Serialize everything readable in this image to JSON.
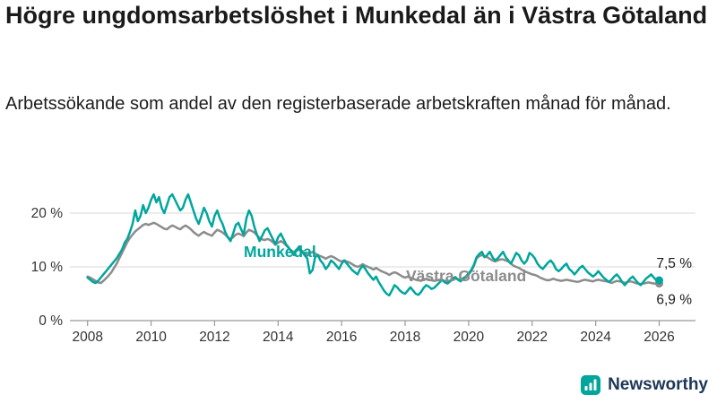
{
  "header": {
    "title": "Högre ungdomsarbetslöshet i Munkedal än i Västra Götaland",
    "subtitle": "Arbetssökande som andel av den registerbaserade arbetskraften månad för månad."
  },
  "footer": {
    "brand": "Newsworthy"
  },
  "colors": {
    "munkedal": "#00A69C",
    "vastra_gotaland": "#8C8C8C",
    "grid": "#D9D9D9",
    "axis": "#999999",
    "axis_text": "#333333",
    "value_text": "#1A1A1A",
    "brand_text": "#1D3756",
    "logo_bg": "#00A69C"
  },
  "chart_data": {
    "type": "line",
    "title": "Högre ungdomsarbetslöshet i Munkedal än i Västra Götaland",
    "xlabel": "",
    "ylabel": "",
    "grid": "horizontal",
    "legend_position": "inline",
    "x_start_year": 2008,
    "x_interval_months": 1,
    "xlim": [
      2007.5,
      2027.2
    ],
    "ylim": [
      0,
      25
    ],
    "x_ticks": [
      2008,
      2010,
      2012,
      2014,
      2016,
      2018,
      2020,
      2022,
      2024,
      2026
    ],
    "y_ticks": [
      {
        "value": 0,
        "label": "0 %"
      },
      {
        "value": 10,
        "label": "10 %"
      },
      {
        "value": 20,
        "label": "20 %"
      }
    ],
    "series": [
      {
        "name": "Munkedal",
        "color": "#00A69C",
        "end_label": "7,5 %",
        "values": [
          8.0,
          7.6,
          7.2,
          7.0,
          7.4,
          8.0,
          8.6,
          9.2,
          9.8,
          10.4,
          11.0,
          11.6,
          12.4,
          13.2,
          14.5,
          15.2,
          16.5,
          18.0,
          20.5,
          18.5,
          19.5,
          21.5,
          20.0,
          21.0,
          22.5,
          23.5,
          22.0,
          23.0,
          21.0,
          20.0,
          21.5,
          23.0,
          23.5,
          22.5,
          21.5,
          20.5,
          21.0,
          22.5,
          23.5,
          22.0,
          20.5,
          19.0,
          18.0,
          19.5,
          21.0,
          20.0,
          18.5,
          17.5,
          19.5,
          20.5,
          19.0,
          18.0,
          16.5,
          15.5,
          14.8,
          16.2,
          17.8,
          18.2,
          17.0,
          16.0,
          19.0,
          20.5,
          19.5,
          17.5,
          16.0,
          14.8,
          15.8,
          16.8,
          17.2,
          16.2,
          15.2,
          14.2,
          15.5,
          16.2,
          15.2,
          14.2,
          13.6,
          12.8,
          12.2,
          13.2,
          13.8,
          12.8,
          12.2,
          11.6,
          8.8,
          9.4,
          11.8,
          12.2,
          11.2,
          10.6,
          9.6,
          10.2,
          11.2,
          10.8,
          10.2,
          9.6,
          10.6,
          11.2,
          10.6,
          10.0,
          9.4,
          9.0,
          8.6,
          9.6,
          10.2,
          9.6,
          8.8,
          8.2,
          7.6,
          8.2,
          7.2,
          6.4,
          5.6,
          5.0,
          4.7,
          5.6,
          6.6,
          6.2,
          5.6,
          5.2,
          5.0,
          5.6,
          6.2,
          5.6,
          5.0,
          4.8,
          5.3,
          6.1,
          6.6,
          6.3,
          5.9,
          6.1,
          6.6,
          7.1,
          7.6,
          7.1,
          6.9,
          7.3,
          7.9,
          8.1,
          7.6,
          7.3,
          7.9,
          8.2,
          8.8,
          9.4,
          10.4,
          11.8,
          12.4,
          12.8,
          11.8,
          12.2,
          12.8,
          11.8,
          11.2,
          11.6,
          12.2,
          12.8,
          11.8,
          11.2,
          10.6,
          11.6,
          12.6,
          12.2,
          11.2,
          10.6,
          11.2,
          12.6,
          12.2,
          11.6,
          10.6,
          10.0,
          9.6,
          10.2,
          10.8,
          11.2,
          10.6,
          9.6,
          9.2,
          9.6,
          10.2,
          10.6,
          9.6,
          9.2,
          8.6,
          9.2,
          9.8,
          10.2,
          9.6,
          9.0,
          8.6,
          8.2,
          8.6,
          9.2,
          8.6,
          8.0,
          7.6,
          7.2,
          7.6,
          8.2,
          8.6,
          8.0,
          7.2,
          6.6,
          7.2,
          7.8,
          8.2,
          7.6,
          7.0,
          6.6,
          7.2,
          7.8,
          8.2,
          8.6,
          8.0,
          7.5,
          7.5
        ]
      },
      {
        "name": "Västra Götaland",
        "color": "#8C8C8C",
        "end_label": "6,9 %",
        "values": [
          8.2,
          8.0,
          7.7,
          7.4,
          7.1,
          7.0,
          7.4,
          7.9,
          8.4,
          9.0,
          9.8,
          10.6,
          11.6,
          12.6,
          13.6,
          14.6,
          15.4,
          16.0,
          16.6,
          17.0,
          17.4,
          17.8,
          18.0,
          17.8,
          18.0,
          18.2,
          18.0,
          17.7,
          17.4,
          17.1,
          17.0,
          17.4,
          17.7,
          17.5,
          17.2,
          17.0,
          17.4,
          17.7,
          17.4,
          17.0,
          16.5,
          16.1,
          15.8,
          16.2,
          16.5,
          16.2,
          16.0,
          15.8,
          16.4,
          16.9,
          16.7,
          16.4,
          16.0,
          15.5,
          15.2,
          15.5,
          16.0,
          16.2,
          16.0,
          15.7,
          16.4,
          16.9,
          16.7,
          16.4,
          15.9,
          15.4,
          15.1,
          15.0,
          15.2,
          15.0,
          14.6,
          14.1,
          14.5,
          14.8,
          14.5,
          14.0,
          13.5,
          13.0,
          12.8,
          13.0,
          13.2,
          13.0,
          12.6,
          12.2,
          12.5,
          12.8,
          12.5,
          12.2,
          12.0,
          11.8,
          11.5,
          11.8,
          12.0,
          11.8,
          11.5,
          11.2,
          11.0,
          11.2,
          11.0,
          10.8,
          10.5,
          10.2,
          10.0,
          10.2,
          10.5,
          10.2,
          10.0,
          9.8,
          9.5,
          9.8,
          9.5,
          9.2,
          9.0,
          8.8,
          8.5,
          8.8,
          9.0,
          8.8,
          8.5,
          8.2,
          8.0,
          8.2,
          8.0,
          7.8,
          7.6,
          7.5,
          7.4,
          7.6,
          7.8,
          7.6,
          7.5,
          7.4,
          7.5,
          7.6,
          7.5,
          7.4,
          7.3,
          7.4,
          7.6,
          7.8,
          7.7,
          7.6,
          7.8,
          8.0,
          8.6,
          9.2,
          10.2,
          11.6,
          12.0,
          12.2,
          12.0,
          11.8,
          11.5,
          11.2,
          11.0,
          11.2,
          11.4,
          11.4,
          11.2,
          11.0,
          10.6,
          10.2,
          10.0,
          9.8,
          9.5,
          9.2,
          9.0,
          8.8,
          8.6,
          8.5,
          8.3,
          8.0,
          7.8,
          7.6,
          7.5,
          7.6,
          7.8,
          7.6,
          7.5,
          7.4,
          7.5,
          7.6,
          7.5,
          7.4,
          7.3,
          7.2,
          7.3,
          7.5,
          7.6,
          7.5,
          7.4,
          7.3,
          7.5,
          7.6,
          7.5,
          7.4,
          7.3,
          7.2,
          7.0,
          7.2,
          7.4,
          7.3,
          7.2,
          7.0,
          7.2,
          7.3,
          7.2,
          7.0,
          6.9,
          6.8,
          6.9,
          7.0,
          7.1,
          7.0,
          6.9,
          6.9,
          6.9
        ]
      }
    ]
  }
}
